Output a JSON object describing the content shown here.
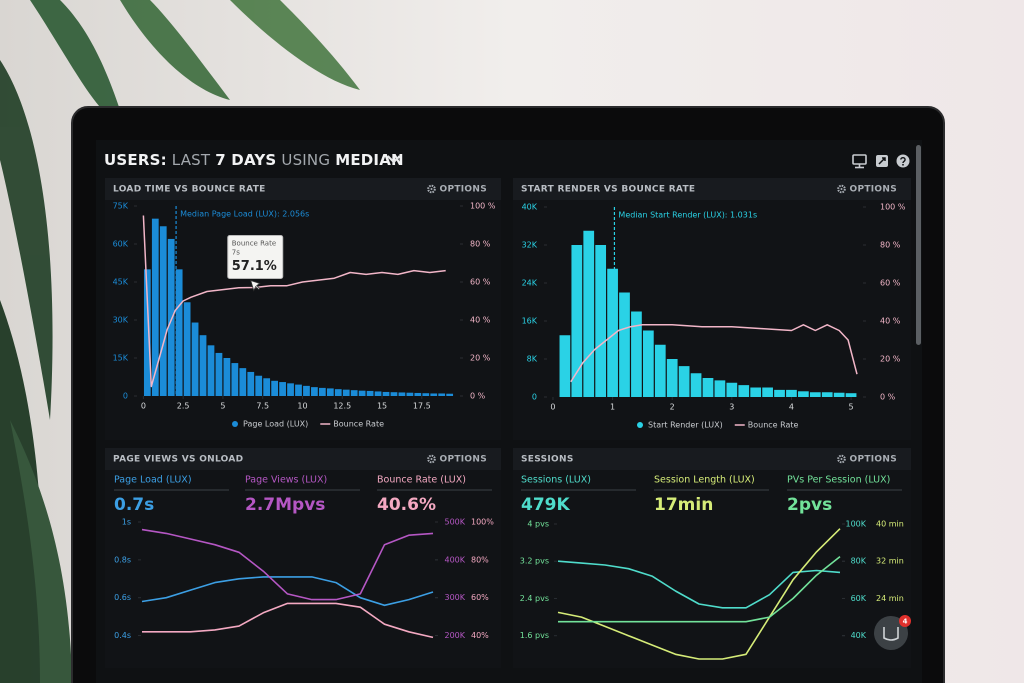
{
  "header": {
    "title_parts": [
      {
        "text": "USERS:",
        "bold": true
      },
      {
        "text": "LAST",
        "bold": false
      },
      {
        "text": "7 DAYS",
        "bold": true
      },
      {
        "text": "USING",
        "bold": false
      },
      {
        "text": "MEDIAN",
        "bold": true
      }
    ]
  },
  "chart_data": [
    {
      "type": "histogram",
      "title": "LOAD TIME VS BOUNCE RATE",
      "options_label": "OPTIONS",
      "bins": [
        0,
        0.5,
        1,
        1.5,
        2,
        2.5,
        3,
        3.5,
        4,
        4.5,
        5,
        5.5,
        6,
        6.5,
        7,
        7.5,
        8,
        8.5,
        9,
        9.5,
        10,
        10.5,
        11,
        11.5,
        12,
        12.5,
        13,
        13.5,
        14,
        14.5,
        15,
        15.5,
        16,
        16.5,
        17,
        17.5,
        18,
        18.5,
        19,
        19.5
      ],
      "series": [
        {
          "name": "Page Load (LUX)",
          "color": "#1b8cd8",
          "values": [
            50000,
            70000,
            67000,
            62000,
            50000,
            37000,
            29000,
            24000,
            20000,
            17000,
            15000,
            13000,
            11000,
            9500,
            8000,
            7000,
            6000,
            5500,
            5000,
            4500,
            4000,
            3500,
            3200,
            3000,
            2700,
            2500,
            2300,
            2100,
            2000,
            1800,
            1600,
            1500,
            1400,
            1300,
            1200,
            1100,
            1000,
            1000,
            900
          ]
        },
        {
          "name": "Bounce Rate",
          "color": "#f2b6c8",
          "axis": "y2",
          "x": [
            0,
            0.5,
            1,
            1.5,
            2,
            2.5,
            3,
            4,
            5,
            6,
            7,
            8,
            9,
            10,
            11,
            12,
            13,
            14,
            15,
            16,
            17,
            18,
            19
          ],
          "values": [
            95,
            5,
            20,
            35,
            45,
            50,
            52,
            55,
            56,
            57,
            57.1,
            58,
            58,
            60,
            61,
            62,
            65,
            64,
            65,
            64,
            66,
            65,
            66
          ]
        }
      ],
      "xlim": [
        -0.4,
        19.9
      ],
      "ylim": [
        0,
        75000
      ],
      "y2lim": [
        0,
        100
      ],
      "xticks": [
        0,
        2.5,
        5,
        7.5,
        10,
        12.5,
        15,
        17.5
      ],
      "yticks": [
        0,
        {
          "value": 15000,
          "label": "15K"
        },
        {
          "value": 30000,
          "label": "30K"
        },
        {
          "value": 45000,
          "label": "45K"
        },
        {
          "value": 60000,
          "label": "60K"
        },
        {
          "value": 75000,
          "label": "75K"
        }
      ],
      "y2ticks": [
        {
          "value": 0,
          "label": "0 %"
        },
        {
          "value": 20,
          "label": "20 %"
        },
        {
          "value": 40,
          "label": "40 %"
        },
        {
          "value": 60,
          "label": "60 %"
        },
        {
          "value": 80,
          "label": "80 %"
        },
        {
          "value": 100,
          "label": "100 %"
        }
      ],
      "annotation": {
        "text": "Median Page Load (LUX): 2.056s",
        "x": 2.056
      },
      "tooltip": {
        "title": "Bounce Rate",
        "subtitle": "7s",
        "x": 7,
        "value": 57.1,
        "value_label": "57.1%"
      }
    },
    {
      "type": "histogram",
      "title": "START RENDER VS BOUNCE RATE",
      "options_label": "OPTIONS",
      "bins": [
        0.1,
        0.3,
        0.5,
        0.7,
        0.9,
        1.1,
        1.3,
        1.5,
        1.7,
        1.9,
        2.1,
        2.3,
        2.5,
        2.7,
        2.9,
        3.1,
        3.3,
        3.5,
        3.7,
        3.9,
        4.1,
        4.3,
        4.5,
        4.7,
        4.9,
        5.1
      ],
      "series": [
        {
          "name": "Start Render (LUX)",
          "color": "#2ad2e6",
          "values": [
            13000,
            32000,
            35000,
            32000,
            27000,
            22000,
            18000,
            14000,
            11000,
            8000,
            6500,
            5000,
            4000,
            3500,
            3000,
            2500,
            2000,
            2000,
            1500,
            1500,
            1200,
            1000,
            1000,
            900,
            800
          ]
        },
        {
          "name": "Bounce Rate",
          "color": "#f2b6c8",
          "axis": "y2",
          "x": [
            0.3,
            0.5,
            0.7,
            0.9,
            1.1,
            1.3,
            1.5,
            2,
            2.5,
            3,
            3.5,
            4,
            4.2,
            4.4,
            4.6,
            4.8,
            4.95,
            5.1
          ],
          "values": [
            8,
            18,
            25,
            30,
            35,
            37,
            38,
            38,
            37,
            37,
            36,
            35,
            38,
            35,
            38,
            35,
            30,
            12
          ]
        }
      ],
      "xlim": [
        -0.1,
        5.2
      ],
      "ylim": [
        0,
        40000
      ],
      "y2lim": [
        0,
        100
      ],
      "xticks": [
        0,
        1,
        2,
        3,
        4,
        5
      ],
      "yticks": [
        0,
        {
          "value": 8000,
          "label": "8K"
        },
        {
          "value": 16000,
          "label": "16K"
        },
        {
          "value": 24000,
          "label": "24K"
        },
        {
          "value": 32000,
          "label": "32K"
        },
        {
          "value": 40000,
          "label": "40K"
        }
      ],
      "y2ticks": [
        {
          "value": 0,
          "label": "0 %"
        },
        {
          "value": 20,
          "label": "20 %"
        },
        {
          "value": 40,
          "label": "40 %"
        },
        {
          "value": 60,
          "label": "60 %"
        },
        {
          "value": 80,
          "label": "80 %"
        },
        {
          "value": 100,
          "label": "100 %"
        }
      ],
      "annotation": {
        "text": "Median Start Render (LUX): 1.031s",
        "x": 1.031
      }
    },
    {
      "type": "kpi-line",
      "title": "PAGE VIEWS VS ONLOAD",
      "options_label": "OPTIONS",
      "kpis": [
        {
          "label": "Page Load (LUX)",
          "value": "0.7s"
        },
        {
          "label": "Page Views (LUX)",
          "value": "2.7Mpvs"
        },
        {
          "label": "Bounce Rate (LUX)",
          "value": "40.6%"
        }
      ],
      "series": [
        {
          "color": "#3c9fe4",
          "axis": "y",
          "values": [
            0.58,
            0.6,
            0.64,
            0.68,
            0.7,
            0.71,
            0.71,
            0.71,
            0.68,
            0.6,
            0.56,
            0.59,
            0.63
          ]
        },
        {
          "color": "#b557c4",
          "axis": "y2",
          "values": [
            480000,
            470000,
            455000,
            440000,
            420000,
            370000,
            310000,
            295000,
            295000,
            310000,
            440000,
            465000,
            470000
          ]
        },
        {
          "color": "#f4a9c2",
          "axis": "y3",
          "values": [
            42,
            42,
            42,
            43,
            45,
            52,
            57,
            57,
            57,
            55,
            46,
            42,
            39
          ]
        }
      ],
      "ylim": [
        0.35,
        1
      ],
      "y2lim": [
        175000,
        500000
      ],
      "y3lim": [
        35,
        100
      ],
      "yticks": [
        {
          "value": 0.4,
          "label": "0.4s"
        },
        {
          "value": 0.6,
          "label": "0.6s"
        },
        {
          "value": 0.8,
          "label": "0.8s"
        },
        {
          "value": 1,
          "label": "1s"
        }
      ],
      "y2ticks": [
        {
          "value": 200000,
          "label": "200K"
        },
        {
          "value": 300000,
          "label": "300K"
        },
        {
          "value": 400000,
          "label": "400K"
        },
        {
          "value": 500000,
          "label": "500K"
        }
      ],
      "y3ticks": [
        {
          "value": 40,
          "label": "40%"
        },
        {
          "value": 60,
          "label": "60%"
        },
        {
          "value": 80,
          "label": "80%"
        },
        {
          "value": 100,
          "label": "100%"
        }
      ]
    },
    {
      "type": "kpi-line",
      "title": "SESSIONS",
      "options_label": "OPTIONS",
      "kpis": [
        {
          "label": "Sessions (LUX)",
          "value": "479K"
        },
        {
          "label": "Session Length (LUX)",
          "value": "17min"
        },
        {
          "label": "PVs Per Session (LUX)",
          "value": "2pvs"
        }
      ],
      "series": [
        {
          "color": "#4fdccb",
          "axis": "y2",
          "values": [
            80000,
            79000,
            78000,
            76000,
            72000,
            64000,
            57000,
            55000,
            55000,
            62000,
            74000,
            75000,
            74000
          ]
        },
        {
          "color": "#d6ec78",
          "axis": "y3",
          "values": [
            21,
            20,
            18,
            16,
            14,
            12,
            11,
            11,
            12,
            20,
            28,
            34,
            39
          ]
        },
        {
          "color": "#72e29a",
          "axis": "y",
          "values": [
            1.9,
            1.9,
            1.9,
            1.9,
            1.9,
            1.9,
            1.9,
            1.9,
            1.9,
            2.0,
            2.4,
            2.9,
            3.3
          ]
        }
      ],
      "ylim": [
        1.4,
        4
      ],
      "y2lim": [
        35000,
        100000
      ],
      "y3lim": [
        14,
        40
      ],
      "yticks": [
        {
          "value": 1.6,
          "label": "1.6 pvs"
        },
        {
          "value": 2.4,
          "label": "2.4 pvs"
        },
        {
          "value": 3.2,
          "label": "3.2 pvs"
        },
        {
          "value": 4,
          "label": "4 pvs"
        }
      ],
      "y2ticks": [
        {
          "value": 40000,
          "label": "40K"
        },
        {
          "value": 60000,
          "label": "60K"
        },
        {
          "value": 80000,
          "label": "80K"
        },
        {
          "value": 100000,
          "label": "100K"
        }
      ],
      "y3ticks": [
        {
          "value": 16,
          "label": "16 min"
        },
        {
          "value": 24,
          "label": "24 min"
        },
        {
          "value": 32,
          "label": "32 min"
        },
        {
          "value": 40,
          "label": "40 min"
        }
      ]
    }
  ],
  "chat_badge": "4"
}
